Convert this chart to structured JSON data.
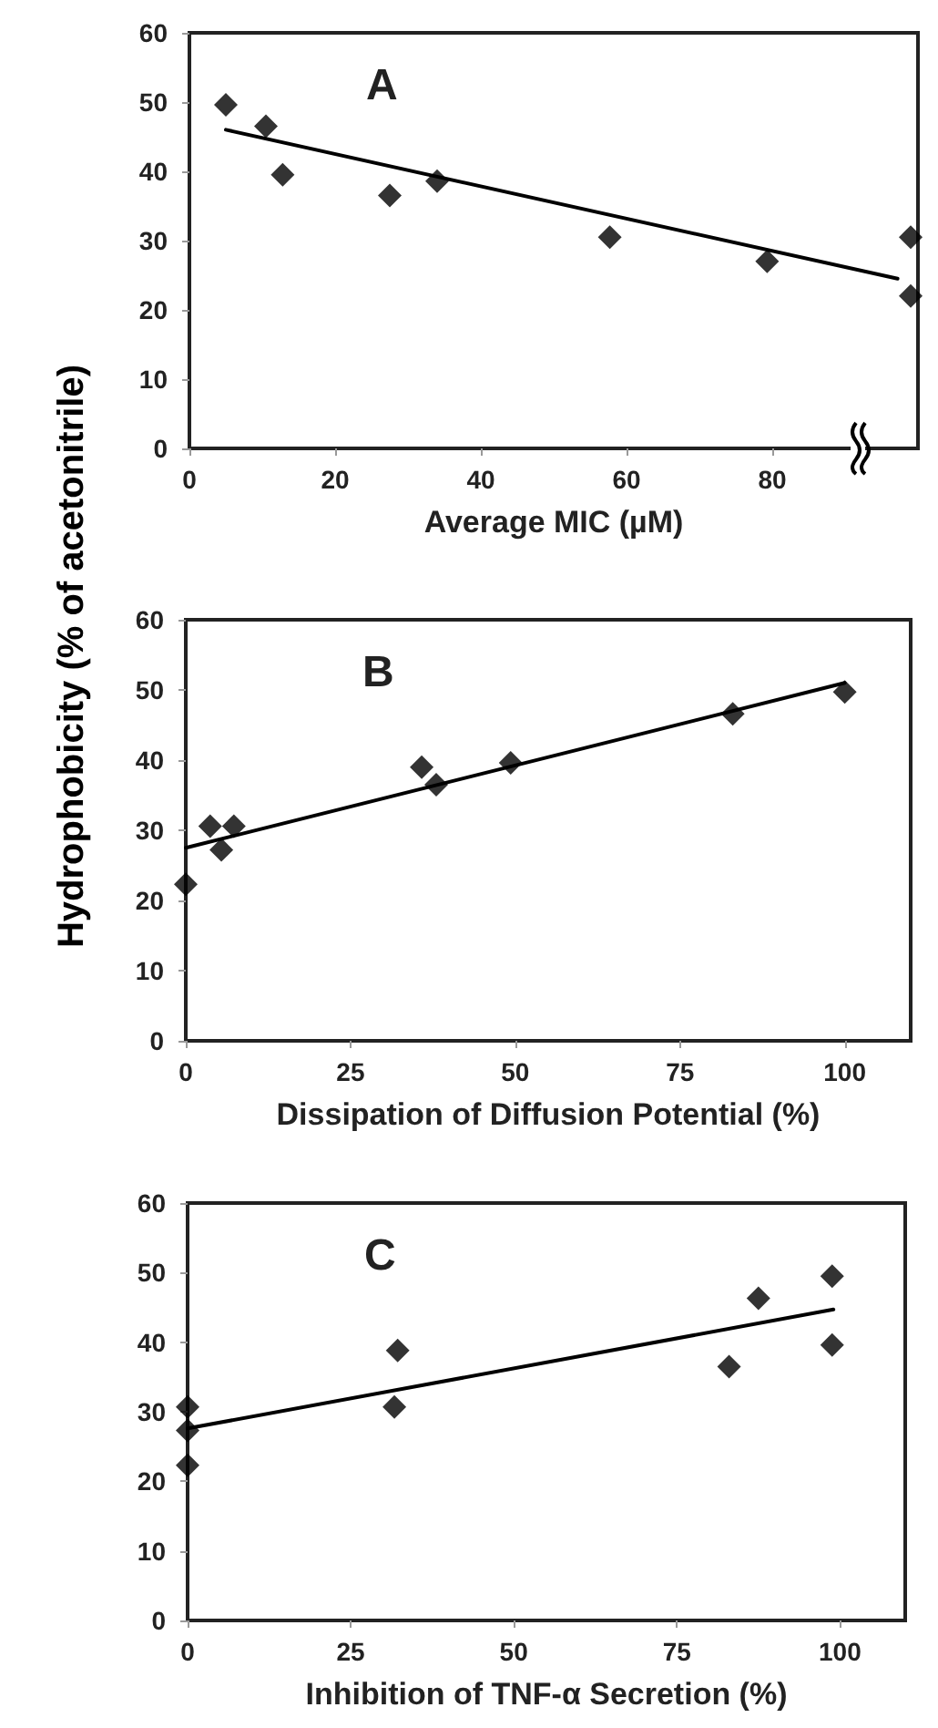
{
  "chart_data": [
    {
      "type": "scatter",
      "title": "A",
      "xlabel": "Average MIC (µM)",
      "xlim": [
        0,
        100
      ],
      "xticks": [
        0,
        20,
        40,
        60,
        80
      ],
      "ylim": [
        0,
        60
      ],
      "yticks": [
        0,
        10,
        20,
        30,
        40,
        50,
        60
      ],
      "grid": false,
      "series": [
        {
          "marker": "diamond",
          "color": "#000000",
          "x": [
            5,
            10.5,
            12.8,
            27.5,
            34,
            57.7,
            79.3,
            99,
            99
          ],
          "values": [
            49.6,
            46.5,
            39.5,
            36.5,
            38.6,
            30.5,
            27,
            30.5,
            22
          ]
        },
        {
          "type": "line",
          "marker": "none",
          "color": "#000000",
          "x": [
            5,
            97.2
          ],
          "values": [
            46,
            24.5
          ]
        }
      ]
    },
    {
      "type": "scatter",
      "title": "B",
      "xlabel": "Dissipation of Diffusion Potential (%)",
      "ylabel": "Hydrophobicity (% of acetonitrile)",
      "xlim": [
        0,
        110
      ],
      "xticks": [
        0,
        25,
        50,
        75,
        100
      ],
      "ylim": [
        0,
        60
      ],
      "yticks": [
        0,
        10,
        20,
        30,
        40,
        50,
        60
      ],
      "grid": false,
      "series": [
        {
          "marker": "diamond",
          "color": "#000000",
          "x": [
            0,
            3.7,
            5.4,
            7.3,
            35.8,
            38,
            49.3,
            83,
            100
          ],
          "values": [
            22.3,
            30.6,
            27.2,
            30.6,
            39,
            36.5,
            39.6,
            46.6,
            49.7
          ]
        },
        {
          "type": "line",
          "marker": "none",
          "color": "#000000",
          "x": [
            0,
            100
          ],
          "values": [
            27.5,
            51
          ]
        }
      ]
    },
    {
      "type": "scatter",
      "title": "C",
      "xlabel": "Inhibition of TNF-α Secretion (%)",
      "xlim": [
        0,
        110
      ],
      "xticks": [
        0,
        25,
        50,
        75,
        100
      ],
      "ylim": [
        0,
        60
      ],
      "yticks": [
        0,
        10,
        20,
        30,
        40,
        50,
        60
      ],
      "grid": false,
      "series": [
        {
          "marker": "diamond",
          "color": "#000000",
          "x": [
            0,
            0,
            0,
            31.7,
            32.2,
            83,
            87.5,
            98.8,
            98.8
          ],
          "values": [
            30.7,
            27.3,
            22.3,
            30.7,
            38.8,
            36.5,
            46.3,
            49.5,
            39.6
          ]
        },
        {
          "type": "line",
          "marker": "none",
          "color": "#000000",
          "x": [
            0,
            99
          ],
          "values": [
            27.6,
            44.7
          ]
        }
      ]
    }
  ]
}
